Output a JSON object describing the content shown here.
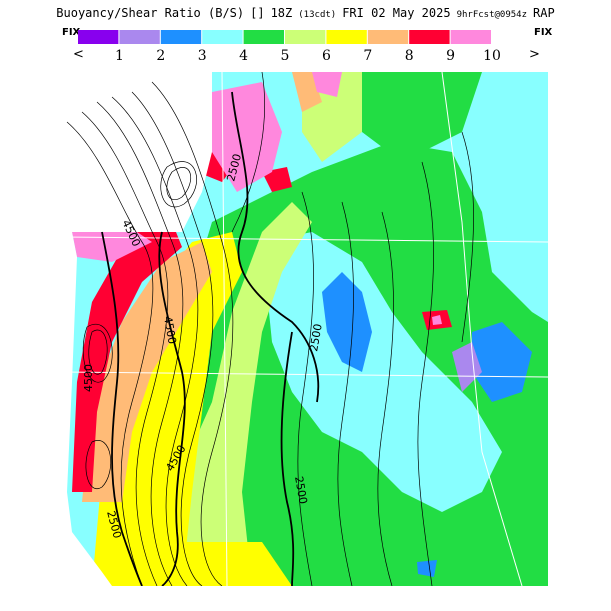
{
  "header": {
    "title": "Buoyancy/Shear Ratio (B/S)",
    "run": "18Z",
    "run_note": "(13cdt)",
    "valid": "FRI 02 May 2025",
    "forecast": "9hrFcst@0954z",
    "model": "RAP"
  },
  "legend": {
    "fix_left": "FIX",
    "fix_right": "FIX",
    "arrow_left": "<",
    "arrow_right": ">",
    "colors": [
      "#8800ee",
      "#aa88ee",
      "#1e90ff",
      "#88ffff",
      "#22dd44",
      "#ccff77",
      "#ffff00",
      "#ffbb77",
      "#ff0033",
      "#ff88dd"
    ],
    "labels": [
      "1",
      "2",
      "3",
      "4",
      "5",
      "6",
      "7",
      "8",
      "9",
      "10"
    ]
  },
  "map": {
    "contour_labels": [
      "4500",
      "2500",
      "4500",
      "4500",
      "2500",
      "2500",
      "4500",
      "2500"
    ]
  }
}
